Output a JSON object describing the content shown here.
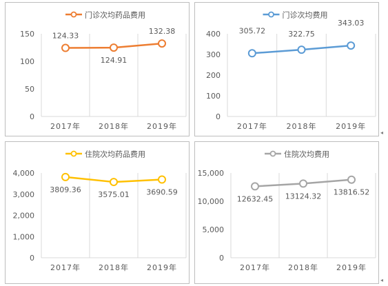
{
  "chart_data": [
    {
      "type": "line",
      "categories": [
        "2017年",
        "2018年",
        "2019年"
      ],
      "series": [
        {
          "name": "门诊次均药品费用",
          "values": [
            124.33,
            124.91,
            132.38
          ]
        }
      ],
      "labels": [
        "124.33",
        "124.91",
        "132.38"
      ],
      "ticks": [
        "0",
        "50",
        "100",
        "150"
      ],
      "ylim": [
        0,
        150
      ],
      "color": "#ED7D31",
      "legend": "top",
      "grid": "vertical"
    },
    {
      "type": "line",
      "categories": [
        "2017年",
        "2018年",
        "2019年"
      ],
      "series": [
        {
          "name": "门诊次均费用",
          "values": [
            305.72,
            322.75,
            343.03
          ]
        }
      ],
      "labels": [
        "305.72",
        "322.75",
        "343.03"
      ],
      "ticks": [
        "0",
        "100",
        "200",
        "300",
        "400"
      ],
      "ylim": [
        0,
        400
      ],
      "color": "#5B9BD5",
      "legend": "top",
      "grid": "vertical"
    },
    {
      "type": "line",
      "categories": [
        "2017年",
        "2018年",
        "2019年"
      ],
      "series": [
        {
          "name": "住院次均药品费用",
          "values": [
            3809.36,
            3575.01,
            3690.59
          ]
        }
      ],
      "labels": [
        "3809.36",
        "3575.01",
        "3690.59"
      ],
      "ticks": [
        "0",
        "1,000",
        "2,000",
        "3,000",
        "4,000"
      ],
      "ylim": [
        0,
        4000
      ],
      "color": "#FFC000",
      "legend": "top",
      "grid": "vertical"
    },
    {
      "type": "line",
      "categories": [
        "2017年",
        "2018年",
        "2019年"
      ],
      "series": [
        {
          "name": "住院次均费用",
          "values": [
            12632.45,
            13124.32,
            13816.52
          ]
        }
      ],
      "labels": [
        "12632.45",
        "13124.32",
        "13816.52"
      ],
      "ticks": [
        "0",
        "5,000",
        "10,000",
        "15,000"
      ],
      "ylim": [
        0,
        15000
      ],
      "color": "#A5A5A5",
      "legend": "top",
      "grid": "vertical"
    }
  ]
}
